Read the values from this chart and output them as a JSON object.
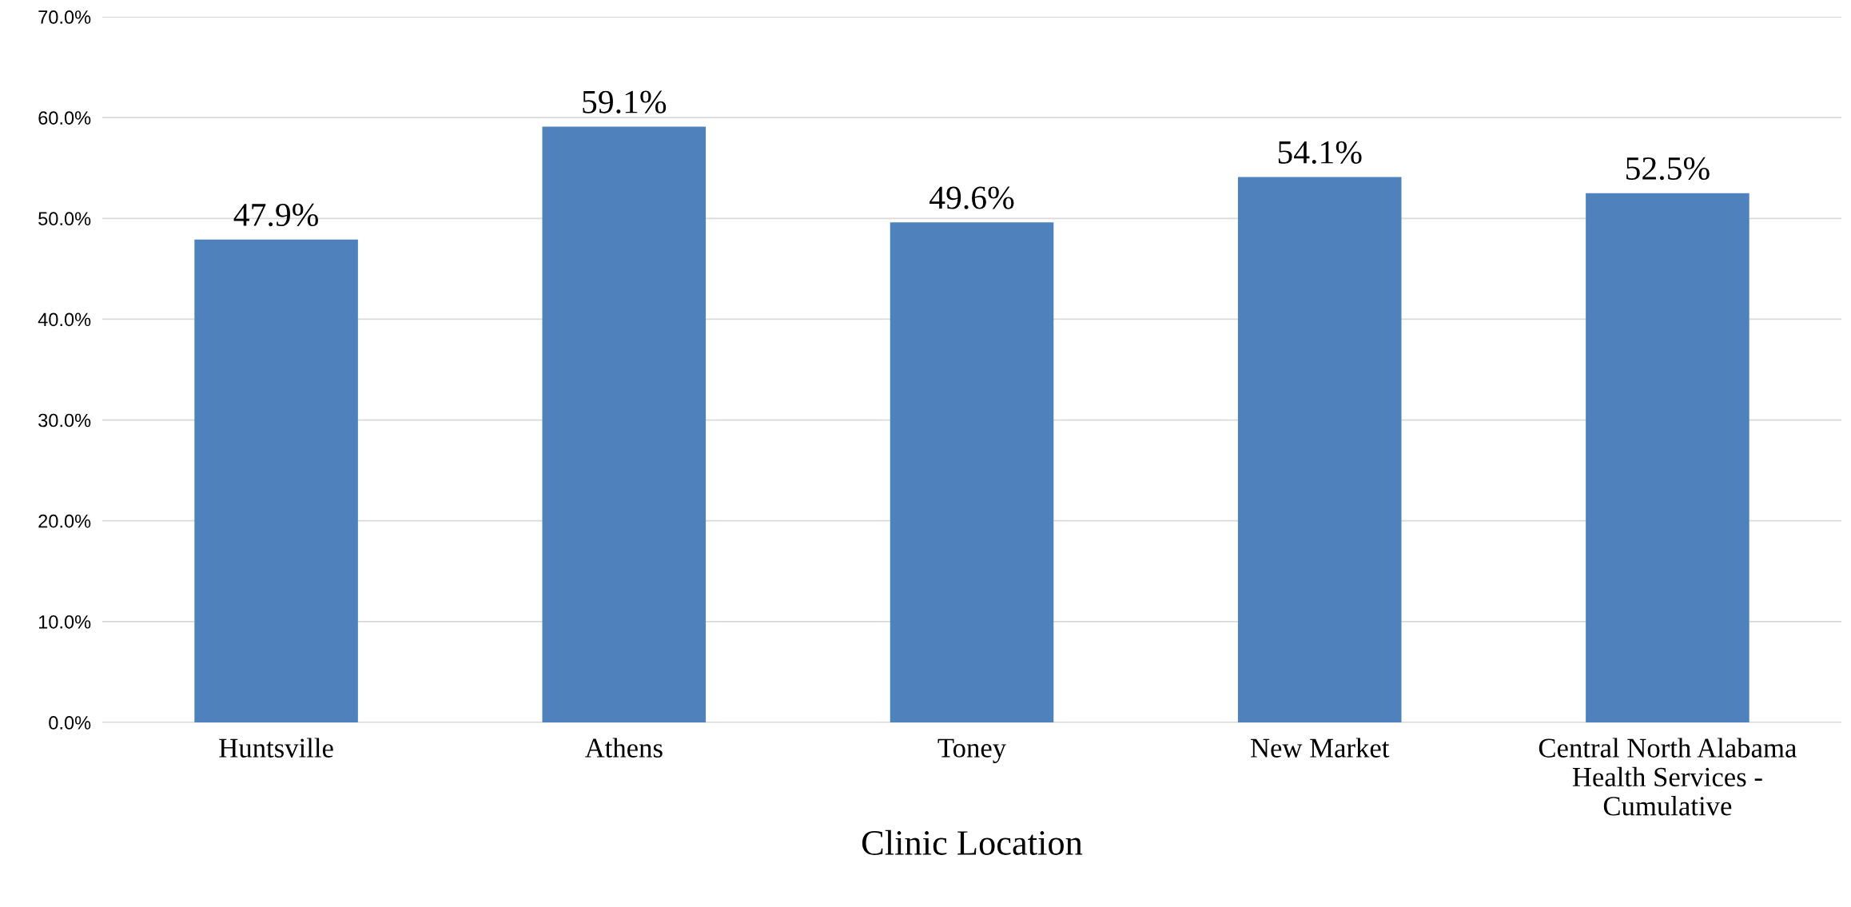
{
  "chart_data": {
    "type": "bar",
    "xlabel": "Clinic Location",
    "categories": [
      "Huntsville",
      "Athens",
      "Toney",
      "New Market",
      "Central North Alabama\nHealth Services -\nCumulative"
    ],
    "values": [
      47.9,
      59.1,
      49.6,
      54.1,
      52.5
    ],
    "value_labels": [
      "47.9%",
      "59.1%",
      "49.6%",
      "54.1%",
      "52.5%"
    ],
    "color": "#4f81bd",
    "ylim": [
      0,
      70
    ],
    "yticks": [
      {
        "value": 0,
        "label": "0.0%"
      },
      {
        "value": 10,
        "label": "10.0%"
      },
      {
        "value": 20,
        "label": "20.0%"
      },
      {
        "value": 30,
        "label": "30.0%"
      },
      {
        "value": 40,
        "label": "40.0%"
      },
      {
        "value": 50,
        "label": "50.0%"
      },
      {
        "value": 60,
        "label": "60.0%"
      },
      {
        "value": 70,
        "label": "70.0%"
      }
    ],
    "grid": "y",
    "legend": false
  }
}
